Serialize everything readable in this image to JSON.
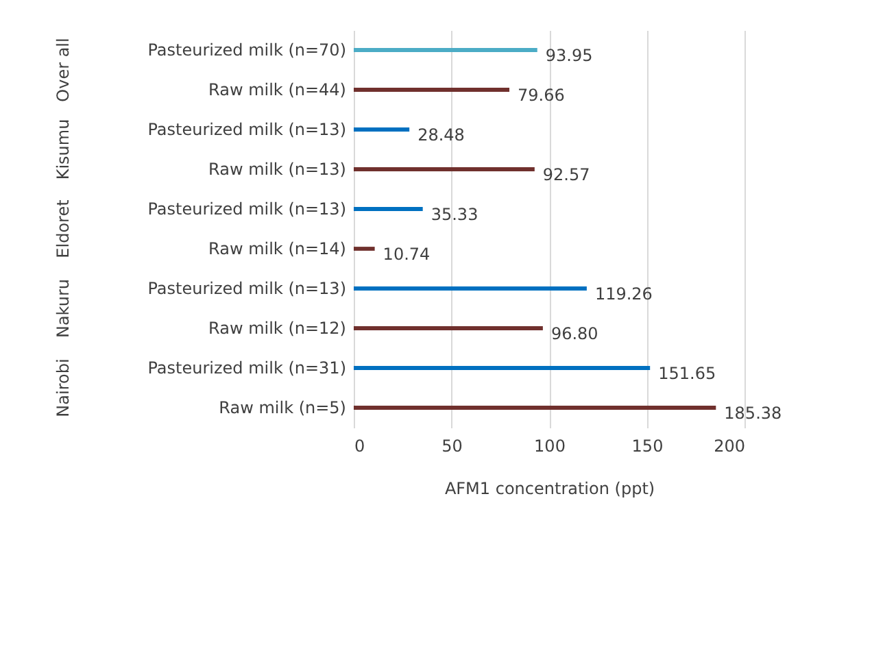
{
  "chart_data": {
    "type": "bar",
    "orientation": "horizontal",
    "categories": [
      "Pasteurized milk (n=70)",
      "Raw milk (n=44)",
      "Pasteurized milk (n=13)",
      "Raw milk (n=13)",
      "Pasteurized milk (n=13)",
      "Raw milk (n=14)",
      "Pasteurized milk (n=13)",
      "Raw milk (n=12)",
      "Pasteurized milk (n=31)",
      "Raw milk (n=5)"
    ],
    "values": [
      93.95,
      79.66,
      28.48,
      92.57,
      35.33,
      10.74,
      119.26,
      96.8,
      151.65,
      185.38
    ],
    "value_labels": [
      "93.95",
      "79.66",
      "28.48",
      "92.57",
      "35.33",
      "10.74",
      "119.26",
      "96.80",
      "151.65",
      "185.38"
    ],
    "colors": [
      "#4bacc6",
      "#70302d",
      "#0070c0",
      "#70302d",
      "#0070c0",
      "#70302d",
      "#0070c0",
      "#70302d",
      "#0070c0",
      "#70302d"
    ],
    "annotations": [
      "Over all",
      "Kisumu",
      "Eldoret",
      "Nakuru",
      "Nairobi"
    ],
    "xlabel": "AFM1 concentration (ppt)",
    "xlim": [
      0,
      200
    ],
    "xticks": [
      0,
      50,
      100,
      150,
      200
    ],
    "grid": "x"
  }
}
